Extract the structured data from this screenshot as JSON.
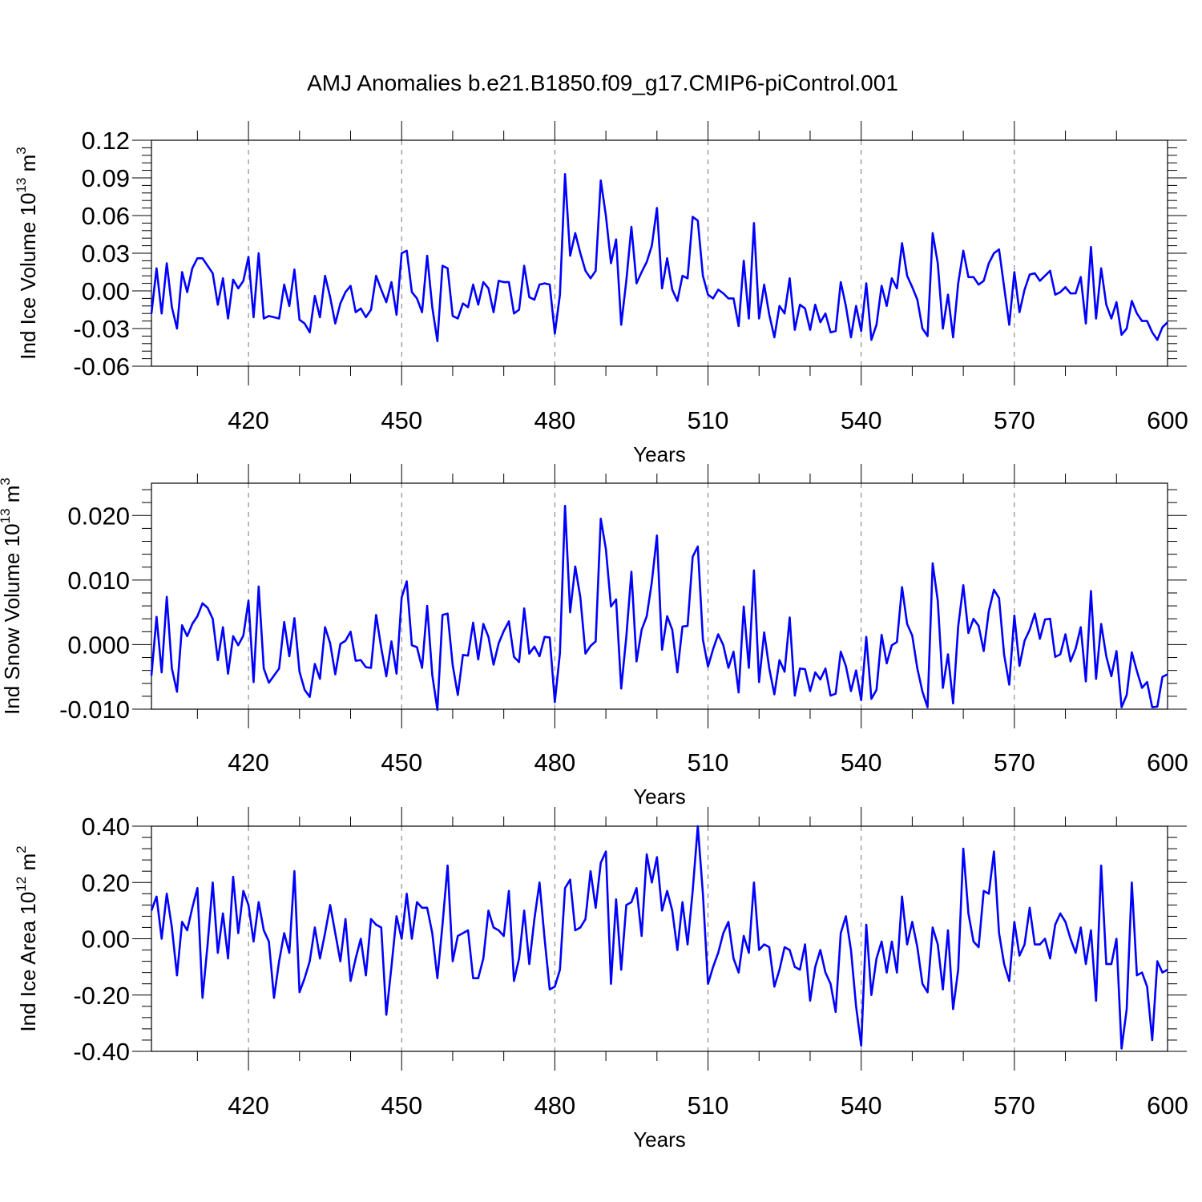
{
  "title": "AMJ Anomalies b.e21.B1850.f09_g17.CMIP6-piControl.001",
  "line_color": "#0000ff",
  "chart_data": [
    {
      "type": "line",
      "xlabel": "Years",
      "ylabel_main": "Ind Ice Volume 10",
      "ylabel_exp": "13",
      "ylabel_unit": " m",
      "ylabel_unit_exp": "3",
      "xlim": [
        401,
        600
      ],
      "ylim": [
        -0.06,
        0.12
      ],
      "x_ticks": [
        420,
        450,
        480,
        510,
        540,
        570,
        600
      ],
      "y_ticks": [
        "-0.06",
        "-0.03",
        "0.00",
        "0.03",
        "0.06",
        "0.09",
        "0.12"
      ],
      "x_start": 401,
      "grid": "vertical dashed at major x ticks",
      "series": [
        {
          "values": [
            -0.018,
            0.018,
            -0.018,
            0.022,
            -0.013,
            -0.03,
            0.015,
            -0.001,
            0.018,
            0.026,
            0.026,
            0.02,
            0.014,
            -0.011,
            0.01,
            -0.022,
            0.009,
            0.002,
            0.008,
            0.027,
            -0.021,
            0.03,
            -0.022,
            -0.02,
            -0.021,
            -0.022,
            0.005,
            -0.012,
            0.017,
            -0.023,
            -0.026,
            -0.033,
            -0.004,
            -0.021,
            0.012,
            -0.005,
            -0.026,
            -0.01,
            -0.001,
            0.004,
            -0.017,
            -0.014,
            -0.021,
            -0.015,
            0.012,
            0.001,
            -0.009,
            0.007,
            -0.019,
            0.03,
            0.032,
            -0.001,
            -0.006,
            -0.017,
            0.028,
            -0.013,
            -0.04,
            0.02,
            0.018,
            -0.02,
            -0.022,
            -0.01,
            -0.013,
            0.005,
            -0.011,
            0.007,
            0.002,
            -0.017,
            0.008,
            0.007,
            0.007,
            -0.018,
            -0.015,
            0.02,
            -0.005,
            -0.007,
            0.005,
            0.006,
            0.005,
            -0.034,
            -0.003,
            0.093,
            0.028,
            0.046,
            0.03,
            0.016,
            0.01,
            0.016,
            0.088,
            0.06,
            0.022,
            0.041,
            -0.027,
            0.008,
            0.051,
            0.006,
            0.015,
            0.023,
            0.036,
            0.066,
            0.002,
            0.026,
            0.001,
            -0.008,
            0.012,
            0.01,
            0.059,
            0.056,
            0.012,
            -0.003,
            -0.006,
            0.001,
            -0.002,
            -0.006,
            -0.006,
            -0.028,
            0.024,
            -0.022,
            0.054,
            -0.022,
            0.005,
            -0.019,
            -0.037,
            -0.012,
            -0.018,
            0.01,
            -0.031,
            -0.011,
            -0.014,
            -0.031,
            -0.011,
            -0.025,
            -0.018,
            -0.033,
            -0.032,
            0.007,
            -0.012,
            -0.037,
            -0.012,
            -0.032,
            0.006,
            -0.039,
            -0.027,
            0.004,
            -0.012,
            0.01,
            0.002,
            0.038,
            0.012,
            0.003,
            -0.007,
            -0.03,
            -0.036,
            0.046,
            0.022,
            -0.03,
            -0.003,
            -0.037,
            0.006,
            0.032,
            0.011,
            0.011,
            0.005,
            0.008,
            0.022,
            0.03,
            0.033,
            0.003,
            -0.027,
            0.015,
            -0.017,
            0.001,
            0.013,
            0.014,
            0.008,
            0.012,
            0.016,
            -0.003,
            -0.001,
            0.003,
            -0.002,
            -0.002,
            0.011,
            -0.026,
            0.035,
            -0.022,
            0.018,
            -0.011,
            -0.022,
            -0.009,
            -0.035,
            -0.03,
            -0.008,
            -0.018,
            -0.024,
            -0.024,
            -0.033,
            -0.039,
            -0.029,
            -0.025
          ]
        }
      ]
    },
    {
      "type": "line",
      "xlabel": "Years",
      "ylabel_main": "Ind Snow Volume 10",
      "ylabel_exp": "13",
      "ylabel_unit": " m",
      "ylabel_unit_exp": "3",
      "xlim": [
        401,
        600
      ],
      "ylim": [
        -0.01,
        0.025
      ],
      "x_ticks": [
        420,
        450,
        480,
        510,
        540,
        570,
        600
      ],
      "y_ticks": [
        "-0.010",
        "0.000",
        "0.010",
        "0.020"
      ],
      "x_start": 401,
      "grid": "vertical dashed at major x ticks",
      "series": [
        {
          "values": [
            -0.0048,
            0.0043,
            -0.0043,
            0.0074,
            -0.0037,
            -0.0073,
            0.003,
            0.0013,
            0.0032,
            0.0044,
            0.0064,
            0.0057,
            0.004,
            -0.0024,
            0.0027,
            -0.0045,
            0.0013,
            -0.0001,
            0.0014,
            0.0068,
            -0.0058,
            0.009,
            -0.0037,
            -0.0059,
            -0.0048,
            -0.0037,
            0.0035,
            -0.0018,
            0.0041,
            -0.0042,
            -0.007,
            -0.0081,
            -0.003,
            -0.0053,
            0.0027,
            0.0002,
            -0.0046,
            0.0001,
            0.0006,
            0.002,
            -0.0025,
            -0.0024,
            -0.0035,
            -0.0036,
            0.0046,
            -0.0005,
            -0.0049,
            0.0005,
            -0.0045,
            0.0073,
            0.0098,
            -0.0001,
            -0.0004,
            -0.0036,
            0.006,
            -0.0047,
            -0.0101,
            0.0046,
            0.0048,
            -0.0032,
            -0.0078,
            -0.0016,
            -0.0017,
            0.0034,
            -0.0023,
            0.0032,
            0.0012,
            -0.0031,
            0.0002,
            0.0021,
            0.0036,
            -0.0019,
            -0.0027,
            0.0056,
            -0.0014,
            -0.0003,
            -0.0018,
            0.0012,
            0.0011,
            -0.0089,
            -0.0013,
            0.0215,
            0.005,
            0.0121,
            0.0073,
            -0.0014,
            -0.0002,
            0.0005,
            0.0195,
            0.0148,
            0.0059,
            0.007,
            -0.0068,
            0.0012,
            0.0113,
            -0.0026,
            0.0023,
            0.0044,
            0.0097,
            0.0169,
            -0.0008,
            0.0044,
            0.0023,
            -0.0043,
            0.0028,
            0.0029,
            0.0136,
            0.0152,
            0.0008,
            -0.0034,
            -0.0007,
            0.0016,
            -0.0001,
            -0.0036,
            -0.0011,
            -0.0074,
            0.0059,
            -0.0036,
            0.0115,
            -0.0058,
            0.0019,
            -0.0037,
            -0.0077,
            -0.0024,
            -0.0042,
            0.0042,
            -0.0079,
            -0.0037,
            -0.0038,
            -0.0072,
            -0.0043,
            -0.0054,
            -0.0037,
            -0.0079,
            -0.0076,
            -0.0011,
            -0.0033,
            -0.0072,
            -0.004,
            -0.0086,
            0.0012,
            -0.0084,
            -0.007,
            0.0015,
            -0.0029,
            -0.0001,
            0.0004,
            0.0089,
            0.0032,
            0.0014,
            -0.0037,
            -0.0073,
            -0.0097,
            0.0126,
            0.0068,
            -0.0067,
            -0.0015,
            -0.0091,
            0.0028,
            0.0092,
            0.0018,
            0.004,
            0.0029,
            -0.001,
            0.0052,
            0.0085,
            0.0072,
            -0.0016,
            -0.0062,
            0.0045,
            -0.0033,
            0.0006,
            0.0023,
            0.0048,
            0.0009,
            0.0039,
            0.004,
            -0.0019,
            -0.0015,
            0.0016,
            -0.0026,
            -0.0006,
            0.0027,
            -0.0057,
            0.0083,
            -0.0053,
            0.0032,
            -0.0018,
            -0.0049,
            -0.001,
            -0.0097,
            -0.0078,
            -0.0012,
            -0.0041,
            -0.0067,
            -0.0058,
            -0.0097,
            -0.0096,
            -0.005,
            -0.0046
          ]
        }
      ]
    },
    {
      "type": "line",
      "xlabel": "Years",
      "ylabel_main": "Ind Ice Area 10",
      "ylabel_exp": "12",
      "ylabel_unit": " m",
      "ylabel_unit_exp": "2",
      "xlim": [
        401,
        600
      ],
      "ylim": [
        -0.4,
        0.4
      ],
      "x_ticks": [
        420,
        450,
        480,
        510,
        540,
        570,
        600
      ],
      "y_ticks": [
        "-0.40",
        "-0.20",
        "0.00",
        "0.20",
        "0.40"
      ],
      "x_start": 401,
      "grid": "vertical dashed at major x ticks",
      "series": [
        {
          "values": [
            0.1,
            0.15,
            0.0,
            0.16,
            0.04,
            -0.13,
            0.06,
            0.03,
            0.11,
            0.18,
            -0.21,
            -0.02,
            0.2,
            -0.05,
            0.09,
            -0.07,
            0.22,
            0.02,
            0.17,
            0.12,
            -0.01,
            0.13,
            0.03,
            -0.01,
            -0.21,
            -0.08,
            0.02,
            -0.05,
            0.24,
            -0.19,
            -0.14,
            -0.08,
            0.04,
            -0.07,
            0.02,
            0.12,
            0.02,
            -0.08,
            0.07,
            -0.15,
            -0.07,
            0.0,
            -0.13,
            0.07,
            0.05,
            0.04,
            -0.27,
            -0.1,
            0.08,
            0.0,
            0.16,
            0.0,
            0.13,
            0.11,
            0.11,
            0.02,
            -0.14,
            0.05,
            0.26,
            -0.08,
            0.01,
            0.02,
            0.03,
            -0.14,
            -0.14,
            -0.07,
            0.1,
            0.04,
            0.03,
            0.01,
            0.17,
            -0.15,
            -0.07,
            0.1,
            -0.09,
            0.07,
            0.2,
            0.0,
            -0.18,
            -0.17,
            -0.11,
            0.18,
            0.21,
            0.03,
            0.04,
            0.07,
            0.24,
            0.11,
            0.27,
            0.31,
            -0.16,
            0.14,
            -0.11,
            0.12,
            0.13,
            0.18,
            0.01,
            0.3,
            0.2,
            0.29,
            0.1,
            0.17,
            0.1,
            -0.04,
            0.13,
            -0.02,
            0.17,
            0.4,
            0.16,
            -0.16,
            -0.1,
            -0.05,
            0.02,
            0.06,
            -0.07,
            -0.12,
            0.01,
            -0.05,
            0.2,
            -0.04,
            -0.02,
            -0.03,
            -0.17,
            -0.11,
            -0.03,
            -0.04,
            -0.1,
            -0.11,
            -0.02,
            -0.22,
            -0.1,
            -0.04,
            -0.12,
            -0.16,
            -0.26,
            0.02,
            0.08,
            -0.04,
            -0.24,
            -0.38,
            0.05,
            -0.2,
            -0.07,
            -0.01,
            -0.12,
            -0.01,
            -0.12,
            0.15,
            -0.02,
            0.06,
            -0.03,
            -0.16,
            -0.19,
            0.04,
            -0.02,
            -0.18,
            0.03,
            -0.25,
            -0.11,
            0.32,
            0.09,
            -0.01,
            -0.03,
            0.17,
            0.16,
            0.31,
            0.02,
            -0.09,
            -0.15,
            0.06,
            -0.06,
            -0.02,
            0.11,
            -0.02,
            -0.02,
            0.0,
            -0.07,
            0.05,
            0.09,
            0.06,
            0.0,
            -0.05,
            0.04,
            -0.09,
            0.03,
            -0.22,
            0.26,
            -0.09,
            -0.09,
            0.0,
            -0.39,
            -0.25,
            0.2,
            -0.13,
            -0.12,
            -0.17,
            -0.36,
            -0.08,
            -0.12,
            -0.11
          ]
        }
      ]
    }
  ]
}
